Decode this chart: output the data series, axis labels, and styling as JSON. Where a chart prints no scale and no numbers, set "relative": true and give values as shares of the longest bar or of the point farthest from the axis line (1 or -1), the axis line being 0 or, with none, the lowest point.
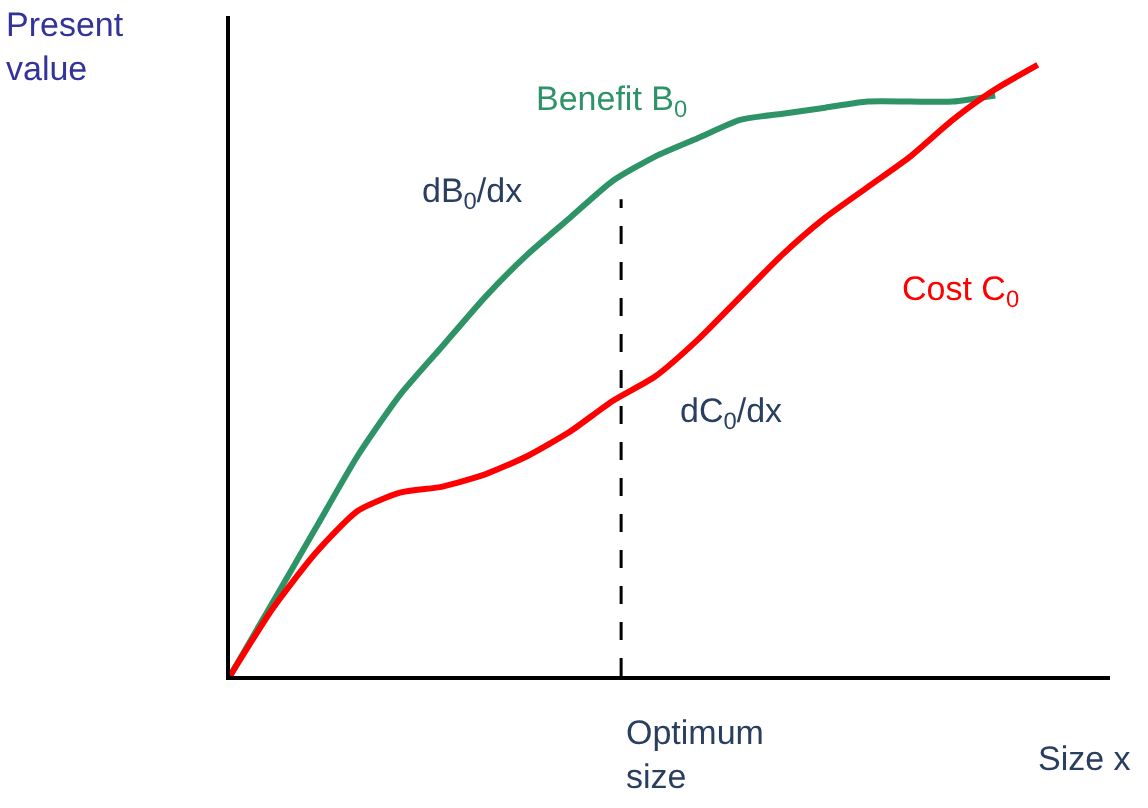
{
  "chart_data": {
    "type": "line",
    "relative": true,
    "xlabel": "Size x",
    "ylabel": "Present value",
    "categories": [
      null,
      null,
      null,
      null,
      null,
      null,
      null,
      null,
      null,
      null,
      null,
      null,
      null,
      null,
      null,
      null,
      null,
      null,
      null,
      null,
      null
    ],
    "series": [
      {
        "name": "Benefit B$_{0}$",
        "color": "#2e9467",
        "values": [
          0,
          0.12,
          0.24,
          0.36,
          0.46,
          0.54,
          0.62,
          0.69,
          0.75,
          0.81,
          0.85,
          0.88,
          0.91,
          0.92,
          0.93,
          0.94,
          0.94,
          0.94,
          0.95,
          null,
          null
        ]
      },
      {
        "name": "Cost C$_{0}$",
        "color": "#ff0000",
        "values": [
          0,
          0.11,
          0.2,
          0.27,
          0.3,
          0.31,
          0.33,
          0.36,
          0.4,
          0.45,
          0.49,
          0.55,
          0.62,
          0.69,
          0.75,
          0.8,
          0.85,
          0.91,
          0.96,
          1.0,
          null
        ]
      }
    ],
    "annotations": [
      "dB$_{0}$/dx",
      "dC$_{0}$/dx",
      "Optimum size"
    ],
    "legend": false,
    "marker": "none",
    "line_style": "solid"
  }
}
